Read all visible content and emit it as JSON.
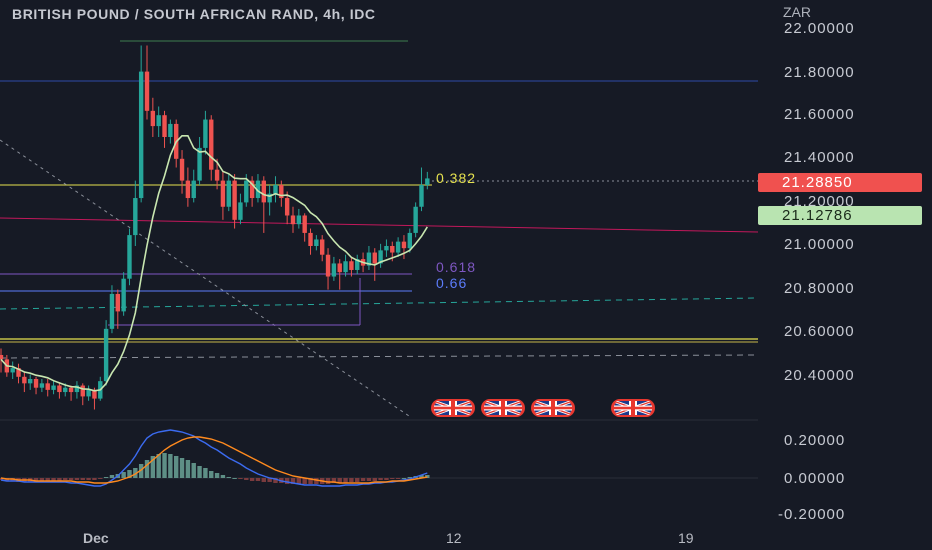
{
  "header": {
    "title": "BRITISH POUND / SOUTH AFRICAN RAND, 4h, IDC",
    "currency": "ZAR"
  },
  "price_axis": {
    "labels": [
      "22.00000",
      "21.80000",
      "21.60000",
      "21.40000",
      "21.20000",
      "21.00000",
      "20.80000",
      "20.60000",
      "20.40000"
    ],
    "last_price": "21.28850",
    "ma_value": "21.12786"
  },
  "macd_axis": {
    "labels": [
      "0.20000",
      "0.00000",
      "-0.20000"
    ]
  },
  "time_axis": {
    "labels": [
      "Dec",
      "12",
      "19"
    ]
  },
  "fib_levels": {
    "level_0382": "0.382",
    "level_0618": "0.618",
    "level_066": "0.66"
  },
  "events": [
    {
      "icon": "uk-flag-icon"
    },
    {
      "icon": "uk-flag-icon"
    },
    {
      "icon": "uk-flag-icon"
    },
    {
      "icon": "uk-flag-icon"
    }
  ],
  "colors": {
    "background": "#161a25",
    "bull": "#26a69a",
    "bear": "#ef5350",
    "last_price_badge": "#f0514f",
    "ma_badge": "#b9e4b1",
    "ma_line": "#c8e6b0",
    "macd_line": "#2962ff",
    "signal_line": "#ff8a1e",
    "fib_0382": "#e6e24f",
    "fib_0618": "#7e57c2",
    "fib_066": "#5c7cfa"
  }
}
